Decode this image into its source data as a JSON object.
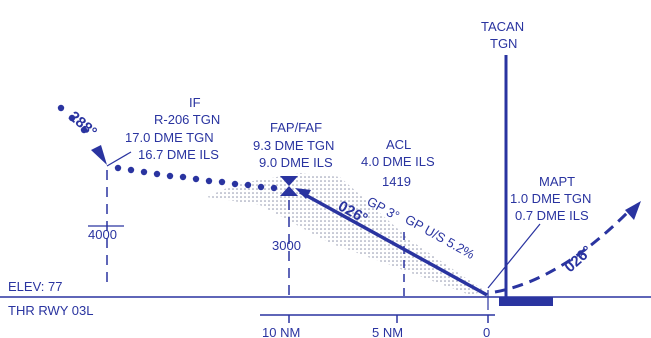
{
  "colors": {
    "ink": "#2a34a0",
    "glide_area": "#9aa0b4"
  },
  "tacan": {
    "line1": "TACAN",
    "line2": "TGN"
  },
  "if_fix": {
    "title": "IF",
    "radial": "R-206 TGN",
    "dme_tgn": "17.0 DME TGN",
    "dme_ils": "16.7 DME ILS"
  },
  "faf": {
    "title": "FAP/FAF",
    "dme_tgn": "9.3 DME TGN",
    "dme_ils": "9.0 DME ILS"
  },
  "acl": {
    "title": "ACL",
    "dme_ils": "4.0 DME ILS",
    "altitude": "1419"
  },
  "mapt": {
    "title": "MAPT",
    "dme_tgn": "1.0 DME TGN",
    "dme_ils": "0.7 DME ILS"
  },
  "courses": {
    "inbound_arrival": "288°",
    "final": "026°",
    "missed": "026°"
  },
  "glidepath": {
    "gp": "GP 3°",
    "gp_us": "GP U/S 5.2%"
  },
  "altitudes": {
    "if_alt": "4000",
    "faf_alt": "3000"
  },
  "runway": {
    "elev": "ELEV: 77",
    "thr": "THR RWY 03L"
  },
  "distance_scale": {
    "labels": [
      "10 NM",
      "5 NM",
      "0"
    ]
  }
}
